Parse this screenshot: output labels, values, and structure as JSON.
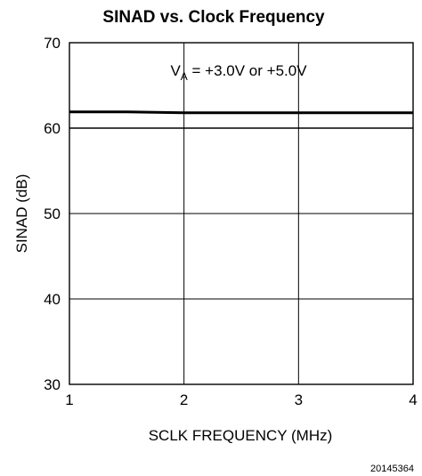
{
  "chart_data": {
    "type": "line",
    "title": "SINAD vs. Clock Frequency",
    "xlabel": "SCLK FREQUENCY (MHz)",
    "ylabel": "SINAD (dB)",
    "xlim": [
      1,
      4
    ],
    "ylim": [
      30,
      70
    ],
    "x_ticks": [
      "1",
      "2",
      "3",
      "4"
    ],
    "y_ticks": [
      "30",
      "40",
      "50",
      "60",
      "70"
    ],
    "grid": true,
    "annotation": {
      "main": "V",
      "sub": "A",
      "rest": " = +3.0V or +5.0V"
    },
    "series": [
      {
        "x": [
          1,
          1.5,
          2,
          2.5,
          3,
          3.5,
          4
        ],
        "y": [
          61.9,
          61.9,
          61.8,
          61.8,
          61.8,
          61.8,
          61.8
        ],
        "stroke": 3
      },
      {
        "x": [
          1,
          1.5,
          2,
          2.5,
          3,
          3.5,
          4
        ],
        "y": [
          60.0,
          60.0,
          60.0,
          60.0,
          60.0,
          60.0,
          60.0
        ],
        "stroke": 1.4
      }
    ],
    "colors": {
      "line": "#000000",
      "grid": "#000000"
    }
  },
  "figure_id": "20145364"
}
